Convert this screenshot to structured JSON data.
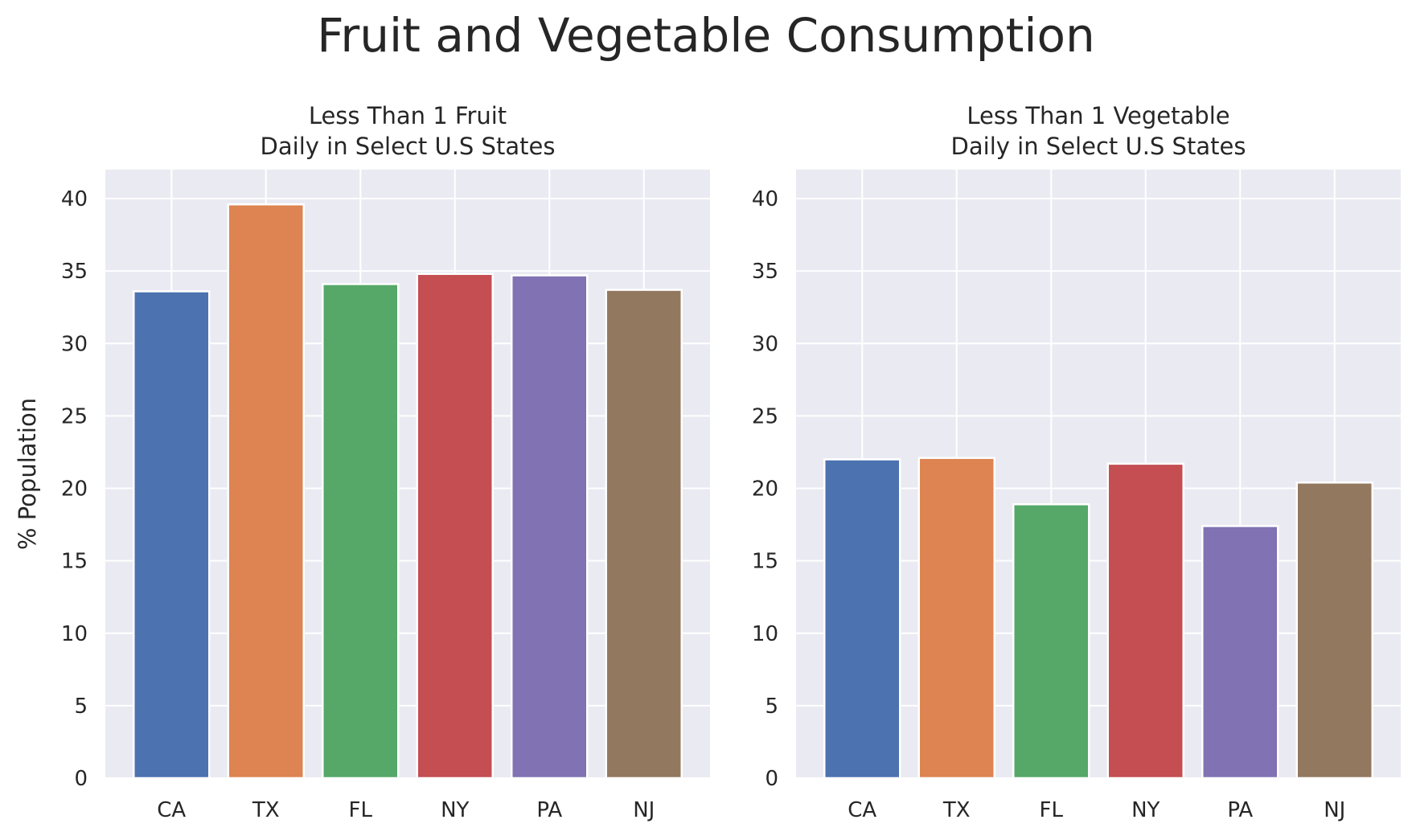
{
  "figure_title": "Fruit and Vegetable Consumption",
  "colors": {
    "background": "#eaeaf2",
    "grid": "#ffffff",
    "bars": [
      "#4c72b0",
      "#dd8452",
      "#55a868",
      "#c44e52",
      "#8172b3",
      "#937860"
    ]
  },
  "chart_data": [
    {
      "type": "bar",
      "title": "Less Than 1 Fruit\nDaily in Select U.S States",
      "title_lines": [
        "Less Than 1 Fruit",
        "Daily in Select U.S States"
      ],
      "ylabel": "% Population",
      "xlabel": "",
      "categories": [
        "CA",
        "TX",
        "FL",
        "NY",
        "PA",
        "NJ"
      ],
      "values": [
        33.6,
        39.6,
        34.1,
        34.8,
        34.7,
        33.7
      ],
      "ylim": [
        0,
        42
      ],
      "yticks": [
        0,
        5,
        10,
        15,
        20,
        25,
        30,
        35,
        40
      ],
      "grid": true
    },
    {
      "type": "bar",
      "title": "Less Than 1 Vegetable\nDaily in Select U.S States",
      "title_lines": [
        "Less Than 1 Vegetable",
        "Daily in Select U.S States"
      ],
      "ylabel": "",
      "xlabel": "",
      "categories": [
        "CA",
        "TX",
        "FL",
        "NY",
        "PA",
        "NJ"
      ],
      "values": [
        22.0,
        22.1,
        18.9,
        21.7,
        17.4,
        20.4
      ],
      "ylim": [
        0,
        42
      ],
      "yticks": [
        0,
        5,
        10,
        15,
        20,
        25,
        30,
        35,
        40
      ],
      "grid": true
    }
  ]
}
